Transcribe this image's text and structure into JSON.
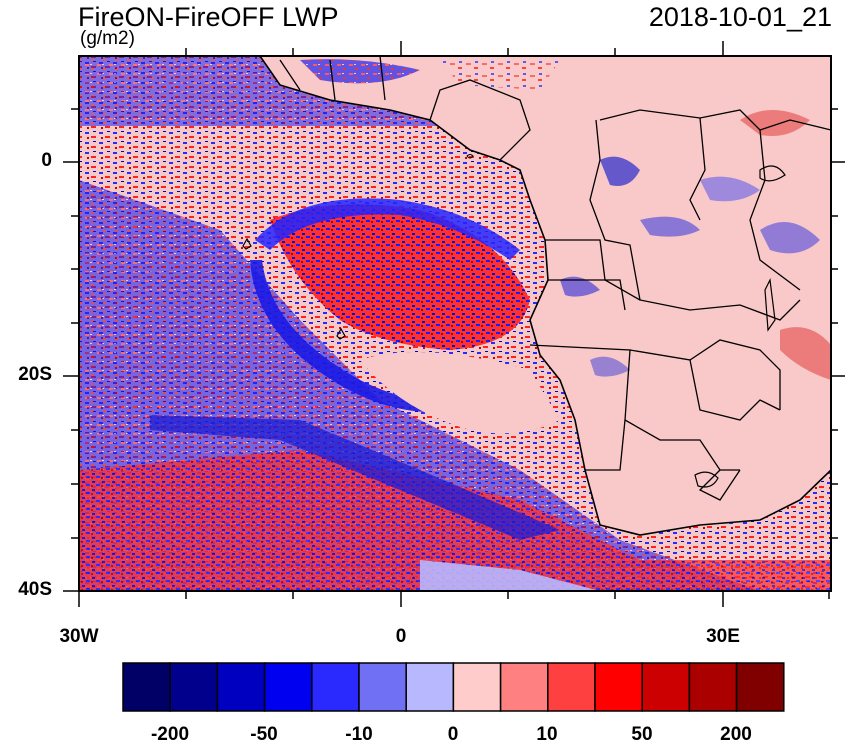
{
  "title": "FireON-FireOFF LWP",
  "units": "(g/m2)",
  "timestamp": "2018-10-01_21",
  "axes": {
    "y_ticks": [
      "0",
      "20S",
      "40S"
    ],
    "x_ticks": [
      "30W",
      "0",
      "30E"
    ]
  },
  "colorbar": {
    "labels": [
      "-200",
      "-50",
      "-10",
      "0",
      "10",
      "50",
      "200"
    ],
    "colors": [
      "#000066",
      "#00008c",
      "#0000c0",
      "#0000f0",
      "#2a2aff",
      "#7070f5",
      "#b8b8ff",
      "#ffcccc",
      "#ff8080",
      "#ff4040",
      "#ff0000",
      "#cc0000",
      "#aa0000",
      "#800000"
    ]
  },
  "palette": {
    "land": "#f9c8c8",
    "coast": "#000000"
  }
}
